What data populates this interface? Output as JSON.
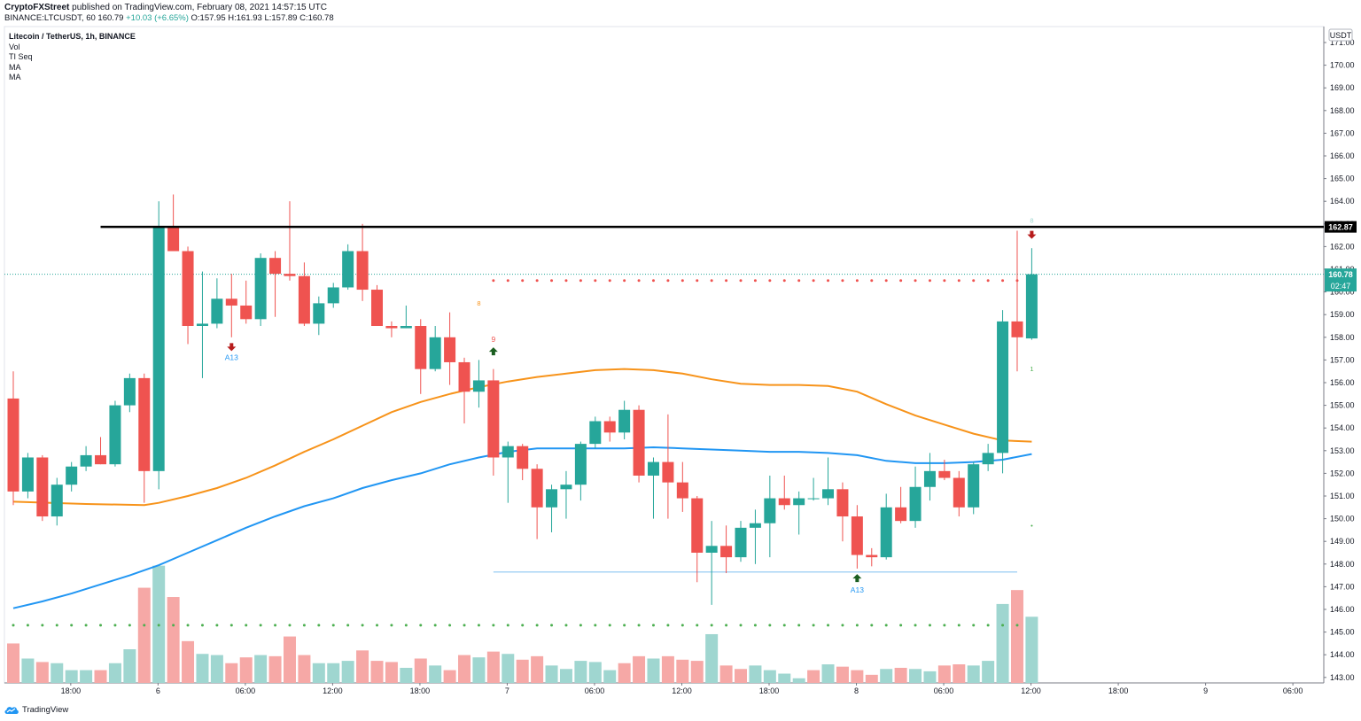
{
  "header": {
    "author": "CryptoFXStreet",
    "published": "published on TradingView.com, February 08, 2021 14:57:15 UTC",
    "symbol_line": "BINANCE:LTCUSDT, 60",
    "last": "160.79",
    "change": "+10.03 (+6.65%)",
    "ohlc": "O:157.95 H:161.93 L:157.89 C:160.78"
  },
  "legend": {
    "title": "Litecoin / TetherUS, 1h, BINANCE",
    "items": [
      "Vol",
      "TI Seq",
      "MA",
      "MA"
    ]
  },
  "price_axis": {
    "currency": "USDT",
    "resistance_label": "162.87",
    "current_price_label": "160.78",
    "countdown_label": "02:47"
  },
  "footer": {
    "brand": "TradingView"
  },
  "colors": {
    "up": "#26a69a",
    "down": "#ef5350",
    "vol_up": "#9fd6d0",
    "vol_down": "#f6a8a6",
    "ma_fast": "#f7931a",
    "ma_slow": "#2196f3",
    "resistance": "#000000",
    "support": "#a9d4f5",
    "tiseq_red": "#ef5350",
    "tiseq_green": "#4caf50"
  },
  "chart_data": {
    "type": "candlestick",
    "title": "Litecoin / TetherUS, 1h, BINANCE",
    "y_axis": {
      "min": 143,
      "max": 171,
      "ticks": [
        143,
        144,
        145,
        146,
        147,
        148,
        149,
        150,
        151,
        152,
        153,
        154,
        155,
        156,
        157,
        158,
        159,
        160,
        161,
        162,
        163,
        164,
        165,
        166,
        167,
        168,
        169,
        170,
        171
      ]
    },
    "x_ticks": [
      {
        "label": "18:00",
        "bar": 2
      },
      {
        "label": "6",
        "bar": 8
      },
      {
        "label": "06:00",
        "bar": 14
      },
      {
        "label": "12:00",
        "bar": 20
      },
      {
        "label": "18:00",
        "bar": 26
      },
      {
        "label": "7",
        "bar": 32
      },
      {
        "label": "06:00",
        "bar": 38
      },
      {
        "label": "12:00",
        "bar": 44
      },
      {
        "label": "18:00",
        "bar": 50
      },
      {
        "label": "8",
        "bar": 56
      },
      {
        "label": "06:00",
        "bar": 62
      },
      {
        "label": "12:00",
        "bar": 68
      },
      {
        "label": "18:00",
        "bar": 74
      },
      {
        "label": "9",
        "bar": 80
      },
      {
        "label": "06:00",
        "bar": 86
      }
    ],
    "candles": [
      {
        "o": 155.3,
        "h": 156.5,
        "l": 150.6,
        "c": 151.2
      },
      {
        "o": 151.2,
        "h": 152.9,
        "l": 150.9,
        "c": 152.7
      },
      {
        "o": 152.7,
        "h": 152.8,
        "l": 149.9,
        "c": 150.1
      },
      {
        "o": 150.1,
        "h": 151.8,
        "l": 149.7,
        "c": 151.5
      },
      {
        "o": 151.5,
        "h": 152.5,
        "l": 151.2,
        "c": 152.3
      },
      {
        "o": 152.3,
        "h": 153.2,
        "l": 152.1,
        "c": 152.8
      },
      {
        "o": 152.8,
        "h": 153.6,
        "l": 152.4,
        "c": 152.4
      },
      {
        "o": 152.4,
        "h": 155.2,
        "l": 152.3,
        "c": 155.0
      },
      {
        "o": 155.0,
        "h": 156.4,
        "l": 154.7,
        "c": 156.2
      },
      {
        "o": 156.2,
        "h": 156.4,
        "l": 150.7,
        "c": 152.1
      },
      {
        "o": 152.1,
        "h": 164.0,
        "l": 151.3,
        "c": 162.9
      },
      {
        "o": 162.9,
        "h": 164.3,
        "l": 161.9,
        "c": 161.8
      },
      {
        "o": 161.8,
        "h": 162.0,
        "l": 157.7,
        "c": 158.5
      },
      {
        "o": 158.5,
        "h": 160.9,
        "l": 156.2,
        "c": 158.6
      },
      {
        "o": 158.6,
        "h": 160.6,
        "l": 158.4,
        "c": 159.7
      },
      {
        "o": 159.7,
        "h": 160.8,
        "l": 158.0,
        "c": 159.4
      },
      {
        "o": 159.4,
        "h": 160.5,
        "l": 158.6,
        "c": 158.8
      },
      {
        "o": 158.8,
        "h": 161.7,
        "l": 158.5,
        "c": 161.5
      },
      {
        "o": 161.5,
        "h": 161.8,
        "l": 158.9,
        "c": 160.8
      },
      {
        "o": 160.8,
        "h": 164.0,
        "l": 160.5,
        "c": 160.7
      },
      {
        "o": 160.7,
        "h": 161.3,
        "l": 158.5,
        "c": 158.6
      },
      {
        "o": 158.6,
        "h": 159.8,
        "l": 158.1,
        "c": 159.5
      },
      {
        "o": 159.5,
        "h": 160.4,
        "l": 159.3,
        "c": 160.2
      },
      {
        "o": 160.2,
        "h": 162.1,
        "l": 160.1,
        "c": 161.8
      },
      {
        "o": 161.8,
        "h": 163.0,
        "l": 159.6,
        "c": 160.1
      },
      {
        "o": 160.1,
        "h": 160.3,
        "l": 158.5,
        "c": 158.5
      },
      {
        "o": 158.5,
        "h": 158.7,
        "l": 158.0,
        "c": 158.4
      },
      {
        "o": 158.4,
        "h": 159.4,
        "l": 158.4,
        "c": 158.5
      },
      {
        "o": 158.5,
        "h": 158.8,
        "l": 155.5,
        "c": 156.6
      },
      {
        "o": 156.6,
        "h": 158.5,
        "l": 156.5,
        "c": 158.0
      },
      {
        "o": 158.0,
        "h": 159.1,
        "l": 155.9,
        "c": 156.9
      },
      {
        "o": 156.9,
        "h": 157.1,
        "l": 154.2,
        "c": 155.6
      },
      {
        "o": 155.6,
        "h": 157.0,
        "l": 154.9,
        "c": 156.1
      },
      {
        "o": 156.1,
        "h": 156.6,
        "l": 151.9,
        "c": 152.7
      },
      {
        "o": 152.7,
        "h": 153.4,
        "l": 150.7,
        "c": 153.2
      },
      {
        "o": 153.2,
        "h": 153.3,
        "l": 151.7,
        "c": 152.2
      },
      {
        "o": 152.2,
        "h": 152.4,
        "l": 149.1,
        "c": 150.5
      },
      {
        "o": 150.5,
        "h": 151.5,
        "l": 149.4,
        "c": 151.3
      },
      {
        "o": 151.3,
        "h": 152.1,
        "l": 150.0,
        "c": 151.5
      },
      {
        "o": 151.5,
        "h": 153.4,
        "l": 150.8,
        "c": 153.3
      },
      {
        "o": 153.3,
        "h": 154.5,
        "l": 153.1,
        "c": 154.3
      },
      {
        "o": 154.3,
        "h": 154.5,
        "l": 153.4,
        "c": 153.8
      },
      {
        "o": 153.8,
        "h": 155.2,
        "l": 153.5,
        "c": 154.8
      },
      {
        "o": 154.8,
        "h": 155.0,
        "l": 151.6,
        "c": 151.9
      },
      {
        "o": 151.9,
        "h": 152.7,
        "l": 150.0,
        "c": 152.5
      },
      {
        "o": 152.5,
        "h": 154.6,
        "l": 150.0,
        "c": 151.6
      },
      {
        "o": 151.6,
        "h": 152.5,
        "l": 150.3,
        "c": 150.9
      },
      {
        "o": 150.9,
        "h": 151.0,
        "l": 147.2,
        "c": 148.5
      },
      {
        "o": 148.5,
        "h": 149.9,
        "l": 146.2,
        "c": 148.8
      },
      {
        "o": 148.8,
        "h": 149.7,
        "l": 147.6,
        "c": 148.3
      },
      {
        "o": 148.3,
        "h": 149.9,
        "l": 148.1,
        "c": 149.6
      },
      {
        "o": 149.6,
        "h": 150.4,
        "l": 148.0,
        "c": 149.8
      },
      {
        "o": 149.8,
        "h": 151.9,
        "l": 148.3,
        "c": 150.9
      },
      {
        "o": 150.9,
        "h": 151.9,
        "l": 150.4,
        "c": 150.6
      },
      {
        "o": 150.6,
        "h": 151.2,
        "l": 149.3,
        "c": 150.9
      },
      {
        "o": 150.9,
        "h": 151.8,
        "l": 150.8,
        "c": 150.9
      },
      {
        "o": 150.9,
        "h": 152.7,
        "l": 150.6,
        "c": 151.3
      },
      {
        "o": 151.3,
        "h": 151.6,
        "l": 149.0,
        "c": 150.1
      },
      {
        "o": 150.1,
        "h": 150.6,
        "l": 147.8,
        "c": 148.4
      },
      {
        "o": 148.4,
        "h": 148.7,
        "l": 147.9,
        "c": 148.3
      },
      {
        "o": 148.3,
        "h": 151.1,
        "l": 148.2,
        "c": 150.5
      },
      {
        "o": 150.5,
        "h": 151.4,
        "l": 149.8,
        "c": 149.9
      },
      {
        "o": 149.9,
        "h": 152.3,
        "l": 149.6,
        "c": 151.4
      },
      {
        "o": 151.4,
        "h": 152.9,
        "l": 150.8,
        "c": 152.1
      },
      {
        "o": 152.1,
        "h": 152.6,
        "l": 151.7,
        "c": 151.8
      },
      {
        "o": 151.8,
        "h": 152.1,
        "l": 150.1,
        "c": 150.5
      },
      {
        "o": 150.5,
        "h": 152.5,
        "l": 150.2,
        "c": 152.4
      },
      {
        "o": 152.4,
        "h": 153.3,
        "l": 152.1,
        "c": 152.9
      },
      {
        "o": 152.9,
        "h": 159.2,
        "l": 152.0,
        "c": 158.7
      },
      {
        "o": 158.7,
        "h": 162.7,
        "l": 156.5,
        "c": 158.0
      },
      {
        "o": 157.95,
        "h": 161.93,
        "l": 157.89,
        "c": 160.78
      }
    ],
    "volume": {
      "max": 145,
      "values": [
        {
          "v": 34,
          "up": false
        },
        {
          "v": 21,
          "up": true
        },
        {
          "v": 18,
          "up": false
        },
        {
          "v": 17,
          "up": true
        },
        {
          "v": 11,
          "up": true
        },
        {
          "v": 11,
          "up": true
        },
        {
          "v": 11,
          "up": false
        },
        {
          "v": 17,
          "up": true
        },
        {
          "v": 29,
          "up": true
        },
        {
          "v": 82,
          "up": false
        },
        {
          "v": 101,
          "up": true
        },
        {
          "v": 74,
          "up": false
        },
        {
          "v": 36,
          "up": false
        },
        {
          "v": 25,
          "up": true
        },
        {
          "v": 24,
          "up": true
        },
        {
          "v": 17,
          "up": false
        },
        {
          "v": 22,
          "up": false
        },
        {
          "v": 24,
          "up": true
        },
        {
          "v": 23,
          "up": false
        },
        {
          "v": 40,
          "up": false
        },
        {
          "v": 24,
          "up": false
        },
        {
          "v": 17,
          "up": true
        },
        {
          "v": 17,
          "up": true
        },
        {
          "v": 19,
          "up": true
        },
        {
          "v": 28,
          "up": false
        },
        {
          "v": 19,
          "up": false
        },
        {
          "v": 18,
          "up": false
        },
        {
          "v": 13,
          "up": true
        },
        {
          "v": 21,
          "up": false
        },
        {
          "v": 15,
          "up": true
        },
        {
          "v": 11,
          "up": false
        },
        {
          "v": 24,
          "up": false
        },
        {
          "v": 22,
          "up": true
        },
        {
          "v": 27,
          "up": false
        },
        {
          "v": 25,
          "up": true
        },
        {
          "v": 20,
          "up": false
        },
        {
          "v": 23,
          "up": false
        },
        {
          "v": 15,
          "up": true
        },
        {
          "v": 12,
          "up": true
        },
        {
          "v": 19,
          "up": true
        },
        {
          "v": 18,
          "up": true
        },
        {
          "v": 11,
          "up": true
        },
        {
          "v": 17,
          "up": false
        },
        {
          "v": 23,
          "up": false
        },
        {
          "v": 21,
          "up": true
        },
        {
          "v": 23,
          "up": false
        },
        {
          "v": 20,
          "up": false
        },
        {
          "v": 19,
          "up": false
        },
        {
          "v": 42,
          "up": true
        },
        {
          "v": 15,
          "up": false
        },
        {
          "v": 12,
          "up": false
        },
        {
          "v": 15,
          "up": true
        },
        {
          "v": 11,
          "up": true
        },
        {
          "v": 8,
          "up": true
        },
        {
          "v": 4,
          "up": true
        },
        {
          "v": 11,
          "up": false
        },
        {
          "v": 16,
          "up": true
        },
        {
          "v": 14,
          "up": false
        },
        {
          "v": 11,
          "up": false
        },
        {
          "v": 7,
          "up": false
        },
        {
          "v": 12,
          "up": true
        },
        {
          "v": 13,
          "up": false
        },
        {
          "v": 12,
          "up": true
        },
        {
          "v": 10,
          "up": true
        },
        {
          "v": 15,
          "up": false
        },
        {
          "v": 16,
          "up": false
        },
        {
          "v": 15,
          "up": true
        },
        {
          "v": 19,
          "up": true
        },
        {
          "v": 68,
          "up": true
        },
        {
          "v": 80,
          "up": false
        },
        {
          "v": 57,
          "up": true
        }
      ]
    },
    "ma_fast": [
      [
        0,
        150.75
      ],
      [
        5,
        150.65
      ],
      [
        9,
        150.6
      ],
      [
        10,
        150.7
      ],
      [
        12,
        151.0
      ],
      [
        14,
        151.35
      ],
      [
        16,
        151.8
      ],
      [
        18,
        152.35
      ],
      [
        20,
        152.95
      ],
      [
        22,
        153.5
      ],
      [
        24,
        154.1
      ],
      [
        26,
        154.7
      ],
      [
        28,
        155.15
      ],
      [
        30,
        155.5
      ],
      [
        32,
        155.8
      ],
      [
        34,
        156.05
      ],
      [
        36,
        156.25
      ],
      [
        38,
        156.4
      ],
      [
        40,
        156.55
      ],
      [
        42,
        156.6
      ],
      [
        44,
        156.55
      ],
      [
        46,
        156.4
      ],
      [
        48,
        156.15
      ],
      [
        50,
        155.95
      ],
      [
        52,
        155.9
      ],
      [
        54,
        155.9
      ],
      [
        56,
        155.85
      ],
      [
        58,
        155.6
      ],
      [
        60,
        155.05
      ],
      [
        62,
        154.55
      ],
      [
        64,
        154.15
      ],
      [
        66,
        153.75
      ],
      [
        68,
        153.45
      ],
      [
        70,
        153.4
      ]
    ],
    "ma_slow": [
      [
        0,
        146.05
      ],
      [
        2,
        146.35
      ],
      [
        4,
        146.7
      ],
      [
        6,
        147.1
      ],
      [
        8,
        147.5
      ],
      [
        10,
        147.95
      ],
      [
        12,
        148.5
      ],
      [
        14,
        149.05
      ],
      [
        16,
        149.6
      ],
      [
        18,
        150.1
      ],
      [
        20,
        150.55
      ],
      [
        22,
        150.9
      ],
      [
        24,
        151.35
      ],
      [
        26,
        151.7
      ],
      [
        28,
        152.0
      ],
      [
        30,
        152.4
      ],
      [
        32,
        152.7
      ],
      [
        34,
        152.95
      ],
      [
        36,
        153.1
      ],
      [
        38,
        153.1
      ],
      [
        40,
        153.1
      ],
      [
        42,
        153.1
      ],
      [
        44,
        153.15
      ],
      [
        46,
        153.1
      ],
      [
        48,
        153.05
      ],
      [
        50,
        153.0
      ],
      [
        52,
        152.95
      ],
      [
        54,
        152.95
      ],
      [
        56,
        152.9
      ],
      [
        58,
        152.8
      ],
      [
        60,
        152.55
      ],
      [
        62,
        152.45
      ],
      [
        64,
        152.45
      ],
      [
        66,
        152.5
      ],
      [
        68,
        152.6
      ],
      [
        70,
        152.85
      ]
    ],
    "levels": {
      "resistance": {
        "price": 162.87,
        "from_bar": 6
      },
      "support": {
        "price": 147.65,
        "from_bar": 33,
        "to_bar": 69
      }
    },
    "tiseq_dots": {
      "red_top": {
        "price": 160.5,
        "from_bar": 33,
        "to_bar": 69
      },
      "green_bottom": {
        "price": 145.3,
        "from_bar": 0,
        "to_bar": 69
      }
    },
    "signals": [
      {
        "bar": 15,
        "type": "arrow-down",
        "color": "#b71c1c",
        "price": 157.55,
        "label": "A13",
        "label_color": "#2196f3"
      },
      {
        "bar": 33,
        "type": "arrow-up",
        "color": "#1b5e20",
        "price": 157.4,
        "label": "9",
        "label_color": "#ef5350",
        "label_above": true
      },
      {
        "bar": 58,
        "type": "arrow-up",
        "color": "#1b5e20",
        "price": 147.4,
        "label": "A13",
        "label_color": "#2196f3"
      },
      {
        "bar": 70,
        "type": "arrow-down",
        "color": "#b71c1c",
        "price": 162.5,
        "label": "",
        "label_color": ""
      }
    ],
    "small_marks": [
      {
        "bar": 32,
        "price": 159.4,
        "text": "8",
        "color": "#f7931a"
      },
      {
        "bar": 70,
        "price": 156.5,
        "text": "1",
        "color": "#4caf50"
      },
      {
        "bar": 70,
        "price": 163.05,
        "text": "8",
        "color": "#9fd6d0"
      },
      {
        "bar": 70,
        "price": 149.6,
        "text": "•",
        "color": "#4caf50"
      }
    ]
  }
}
